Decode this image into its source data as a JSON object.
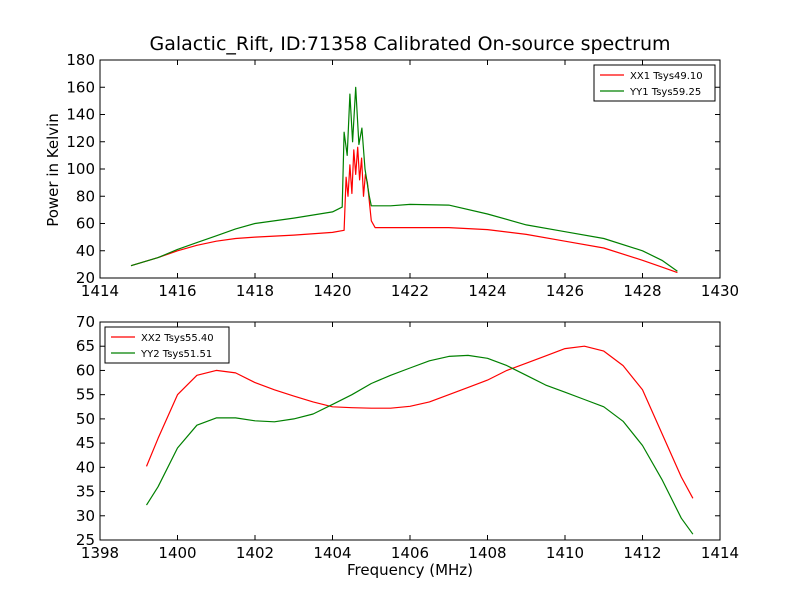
{
  "figure": {
    "title": "Galactic_Rift, ID:71358 Calibrated On-source spectrum",
    "ylabel": "Power in Kelvin",
    "xlabel": "Frequency (MHz)"
  },
  "chart_data": [
    {
      "type": "line",
      "title": "Galactic_Rift, ID:71358 Calibrated On-source spectrum",
      "ylabel": "Power in Kelvin",
      "xlabel": "",
      "xlim": [
        1414,
        1430
      ],
      "ylim": [
        20,
        180
      ],
      "xticks": [
        1414,
        1416,
        1418,
        1420,
        1422,
        1424,
        1426,
        1428,
        1430
      ],
      "yticks": [
        20,
        40,
        60,
        80,
        100,
        120,
        140,
        160,
        180
      ],
      "grid": false,
      "legend_position": "top-right",
      "series": [
        {
          "name": "XX1 Tsys49.10",
          "color": "#ff0000",
          "points": [
            [
              1414.8,
              29
            ],
            [
              1415.5,
              35
            ],
            [
              1416,
              40
            ],
            [
              1416.5,
              44
            ],
            [
              1417,
              47
            ],
            [
              1417.5,
              49
            ],
            [
              1418,
              50
            ],
            [
              1419,
              51.5
            ],
            [
              1420,
              53.5
            ],
            [
              1420.3,
              55
            ],
            [
              1420.35,
              94
            ],
            [
              1420.4,
              80
            ],
            [
              1420.45,
              103
            ],
            [
              1420.5,
              82
            ],
            [
              1420.55,
              114
            ],
            [
              1420.6,
              96
            ],
            [
              1420.65,
              116
            ],
            [
              1420.7,
              92
            ],
            [
              1420.75,
              108
            ],
            [
              1420.8,
              80
            ],
            [
              1420.85,
              96
            ],
            [
              1420.9,
              90
            ],
            [
              1421,
              62
            ],
            [
              1421.1,
              57
            ],
            [
              1422,
              57
            ],
            [
              1423,
              57
            ],
            [
              1424,
              55.5
            ],
            [
              1425,
              52
            ],
            [
              1426,
              47
            ],
            [
              1427,
              42
            ],
            [
              1428,
              33
            ],
            [
              1428.5,
              28
            ],
            [
              1428.9,
              24
            ]
          ]
        },
        {
          "name": "YY1 Tsys59.25",
          "color": "#008000",
          "points": [
            [
              1414.8,
              29
            ],
            [
              1415.5,
              35
            ],
            [
              1416,
              41
            ],
            [
              1416.5,
              46
            ],
            [
              1417,
              51
            ],
            [
              1417.5,
              56
            ],
            [
              1418,
              60
            ],
            [
              1419,
              64
            ],
            [
              1420,
              68.5
            ],
            [
              1420.25,
              72
            ],
            [
              1420.3,
              127
            ],
            [
              1420.38,
              110
            ],
            [
              1420.45,
              155
            ],
            [
              1420.52,
              120
            ],
            [
              1420.6,
              160
            ],
            [
              1420.68,
              118
            ],
            [
              1420.76,
              130
            ],
            [
              1420.84,
              100
            ],
            [
              1420.95,
              80
            ],
            [
              1421,
              73
            ],
            [
              1421.5,
              73
            ],
            [
              1422,
              74
            ],
            [
              1423,
              73.5
            ],
            [
              1424,
              67
            ],
            [
              1425,
              59
            ],
            [
              1426,
              54
            ],
            [
              1427,
              49
            ],
            [
              1428,
              40
            ],
            [
              1428.5,
              33
            ],
            [
              1428.9,
              25
            ]
          ]
        }
      ]
    },
    {
      "type": "line",
      "title": "",
      "ylabel": "",
      "xlabel": "Frequency (MHz)",
      "xlim": [
        1398,
        1414
      ],
      "ylim": [
        25,
        70
      ],
      "xticks": [
        1398,
        1400,
        1402,
        1404,
        1406,
        1408,
        1410,
        1412,
        1414
      ],
      "yticks": [
        25,
        30,
        35,
        40,
        45,
        50,
        55,
        60,
        65,
        70
      ],
      "grid": false,
      "legend_position": "top-left",
      "series": [
        {
          "name": "XX2 Tsys55.40",
          "color": "#ff0000",
          "points": [
            [
              1399.2,
              40.2
            ],
            [
              1399.5,
              46
            ],
            [
              1400,
              55
            ],
            [
              1400.5,
              59
            ],
            [
              1401,
              60
            ],
            [
              1401.5,
              59.5
            ],
            [
              1402,
              57.5
            ],
            [
              1402.5,
              56
            ],
            [
              1403,
              54.7
            ],
            [
              1403.5,
              53.5
            ],
            [
              1404,
              52.5
            ],
            [
              1404.5,
              52.3
            ],
            [
              1405,
              52.2
            ],
            [
              1405.5,
              52.2
            ],
            [
              1406,
              52.6
            ],
            [
              1406.5,
              53.5
            ],
            [
              1407,
              55
            ],
            [
              1407.5,
              56.5
            ],
            [
              1408,
              58
            ],
            [
              1408.5,
              60
            ],
            [
              1409,
              61.5
            ],
            [
              1409.5,
              63
            ],
            [
              1410,
              64.5
            ],
            [
              1410.5,
              65
            ],
            [
              1411,
              64
            ],
            [
              1411.5,
              61
            ],
            [
              1412,
              56
            ],
            [
              1412.5,
              47
            ],
            [
              1413,
              38
            ],
            [
              1413.3,
              33.6
            ]
          ]
        },
        {
          "name": "YY2 Tsys51.51",
          "color": "#008000",
          "points": [
            [
              1399.2,
              32.2
            ],
            [
              1399.5,
              36
            ],
            [
              1400,
              44
            ],
            [
              1400.5,
              48.7
            ],
            [
              1401,
              50.2
            ],
            [
              1401.5,
              50.2
            ],
            [
              1402,
              49.6
            ],
            [
              1402.5,
              49.4
            ],
            [
              1403,
              50
            ],
            [
              1403.5,
              51
            ],
            [
              1404,
              53
            ],
            [
              1404.5,
              55
            ],
            [
              1405,
              57.3
            ],
            [
              1405.5,
              59
            ],
            [
              1406,
              60.5
            ],
            [
              1406.5,
              62
            ],
            [
              1407,
              62.9
            ],
            [
              1407.5,
              63.1
            ],
            [
              1408,
              62.5
            ],
            [
              1408.5,
              61
            ],
            [
              1409,
              59
            ],
            [
              1409.5,
              57
            ],
            [
              1410,
              55.5
            ],
            [
              1410.5,
              54
            ],
            [
              1411,
              52.5
            ],
            [
              1411.5,
              49.5
            ],
            [
              1412,
              44.5
            ],
            [
              1412.5,
              37.5
            ],
            [
              1413,
              29.5
            ],
            [
              1413.3,
              26.2
            ]
          ]
        }
      ]
    }
  ]
}
